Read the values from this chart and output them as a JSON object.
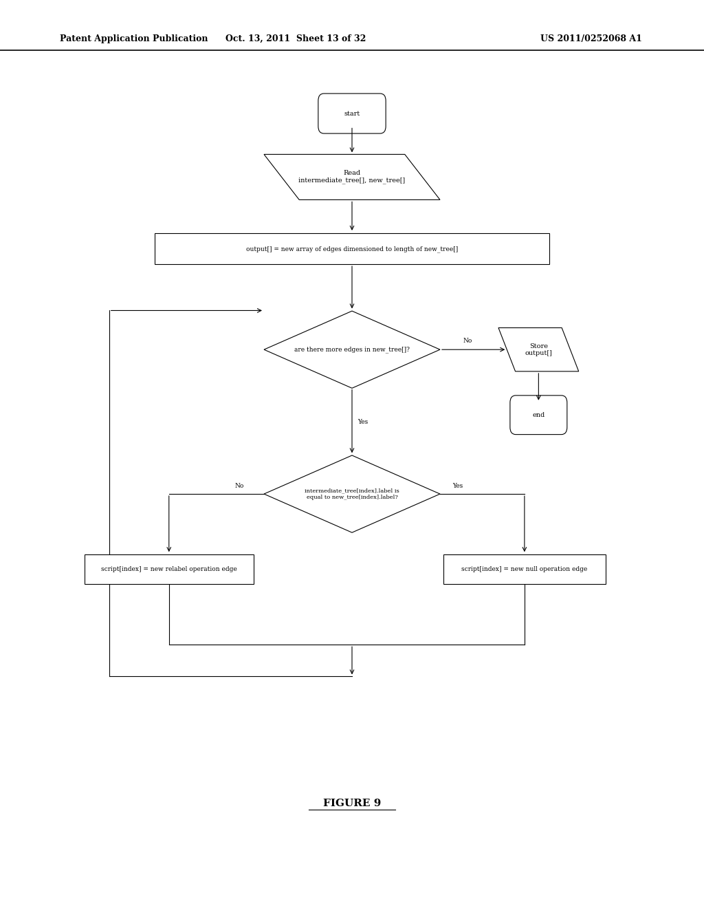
{
  "header_left": "Patent Application Publication",
  "header_mid": "Oct. 13, 2011  Sheet 13 of 32",
  "header_right": "US 2011/0252068 A1",
  "figure_label": "FIGURE 9",
  "bg_color": "#ffffff"
}
